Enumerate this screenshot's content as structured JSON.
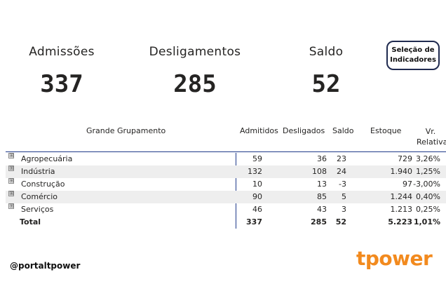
{
  "kpis": {
    "admissoes": {
      "label": "Admissões",
      "value": "337"
    },
    "desligamentos": {
      "label": "Desligamentos",
      "value": "285"
    },
    "saldo": {
      "label": "Saldo",
      "value": "52"
    }
  },
  "selection_button": {
    "line1": "Seleção de",
    "line2": "Indicadores"
  },
  "table": {
    "headers": {
      "group": "Grande Grupamento",
      "admitidos": "Admitidos",
      "desligados": "Desligados",
      "saldo": "Saldo",
      "estoque": "Estoque",
      "var_line1": "Vr.",
      "var_line2": "Relativa"
    },
    "rows": [
      {
        "name": "Agropecuária",
        "admitidos": "59",
        "desligados": "36",
        "saldo": "23",
        "estoque": "729",
        "var": "3,26%"
      },
      {
        "name": "Indústria",
        "admitidos": "132",
        "desligados": "108",
        "saldo": "24",
        "estoque": "1.940",
        "var": "1,25%"
      },
      {
        "name": "Construção",
        "admitidos": "10",
        "desligados": "13",
        "saldo": "-3",
        "estoque": "97",
        "var": "-3,00%"
      },
      {
        "name": "Comércio",
        "admitidos": "90",
        "desligados": "85",
        "saldo": "5",
        "estoque": "1.244",
        "var": "0,40%"
      },
      {
        "name": "Serviços",
        "admitidos": "46",
        "desligados": "43",
        "saldo": "3",
        "estoque": "1.213",
        "var": "0,25%"
      }
    ],
    "total": {
      "name": "Total",
      "admitidos": "337",
      "desligados": "285",
      "saldo": "52",
      "estoque": "5.223",
      "var": "1,01%"
    },
    "expand_glyph": "⊞"
  },
  "footer": {
    "handle": "@portaltpower",
    "logo": "tpower"
  },
  "colors": {
    "accent": "#f28a1e",
    "border": "#1f2a4f",
    "row_shade": "#eeeeee"
  }
}
